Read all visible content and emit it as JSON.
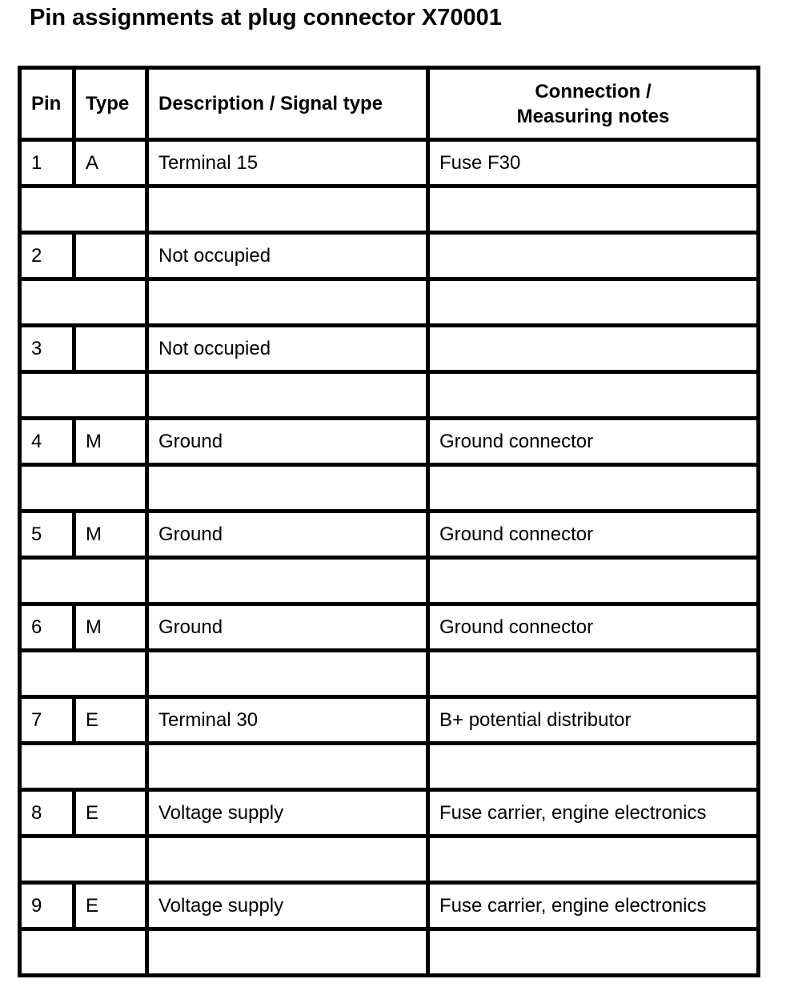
{
  "title": "Pin assignments at plug connector X70001",
  "headers": {
    "pin": "Pin",
    "type": "Type",
    "description": "Description / Signal type",
    "connection_line1": "Connection /",
    "connection_line2": "Measuring notes"
  },
  "rows": [
    {
      "pin": "1",
      "type": "A",
      "description": "Terminal 15",
      "connection": "Fuse F30"
    },
    {
      "pin": "2",
      "type": "",
      "description": "Not occupied",
      "connection": ""
    },
    {
      "pin": "3",
      "type": "",
      "description": "Not occupied",
      "connection": ""
    },
    {
      "pin": "4",
      "type": "M",
      "description": "Ground",
      "connection": "Ground connector"
    },
    {
      "pin": "5",
      "type": "M",
      "description": "Ground",
      "connection": "Ground connector"
    },
    {
      "pin": "6",
      "type": "M",
      "description": "Ground",
      "connection": "Ground connector"
    },
    {
      "pin": "7",
      "type": "E",
      "description": "Terminal 30",
      "connection": "B+ potential distributor"
    },
    {
      "pin": "8",
      "type": "E",
      "description": "Voltage supply",
      "connection": "Fuse carrier, engine electronics"
    },
    {
      "pin": "9",
      "type": "E",
      "description": "Voltage supply",
      "connection": "Fuse carrier, engine electronics"
    }
  ]
}
